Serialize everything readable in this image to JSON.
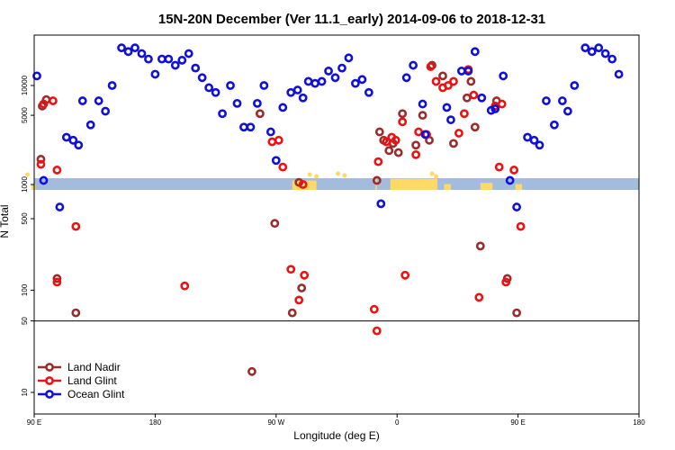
{
  "chart_data": {
    "type": "scatter",
    "title": "15N-20N December (Ver 11.1_early)   2014-09-06 to 2018-12-31",
    "xlabel": "Longitude (deg E)",
    "ylabel": "N Total",
    "x_ticks": [
      {
        "lon": 90,
        "label": "90 E"
      },
      {
        "lon": 180,
        "label": "180"
      },
      {
        "lon": 270,
        "label": "90 W"
      },
      {
        "lon": 360,
        "label": "0"
      },
      {
        "lon": 450,
        "label": "90 E"
      },
      {
        "lon": 540,
        "label": "180"
      }
    ],
    "xlim": [
      90,
      540
    ],
    "ylim": [
      6,
      30000
    ],
    "y_ticks": [
      {
        "value": 10,
        "label": "10"
      },
      {
        "value": 50,
        "label": "50"
      },
      {
        "value": 100,
        "label": "100"
      },
      {
        "value": 500,
        "label": "500"
      },
      {
        "value": 1000,
        "label": "1000"
      },
      {
        "value": 5000,
        "label": "5000"
      },
      {
        "value": 10000,
        "label": "10000"
      }
    ],
    "break_value": 1000,
    "separator_value": 50,
    "series": [
      {
        "name": "Land Nadir",
        "color": "#9b2c2c",
        "points": [
          [
            95,
            1800
          ],
          [
            96,
            6200
          ],
          [
            99,
            7200
          ],
          [
            107,
            130
          ],
          [
            121,
            60
          ],
          [
            252,
            16
          ],
          [
            258,
            5200
          ],
          [
            269,
            450
          ],
          [
            282,
            60
          ],
          [
            287,
            1050
          ],
          [
            289,
            105
          ],
          [
            345,
            1100
          ],
          [
            347,
            3400
          ],
          [
            350,
            2800
          ],
          [
            354,
            2200
          ],
          [
            357,
            2600
          ],
          [
            361,
            2100
          ],
          [
            364,
            5200
          ],
          [
            374,
            2500
          ],
          [
            379,
            5000
          ],
          [
            384,
            2800
          ],
          [
            386,
            16000
          ],
          [
            394,
            12500
          ],
          [
            402,
            2600
          ],
          [
            412,
            7500
          ],
          [
            415,
            11000
          ],
          [
            418,
            3800
          ],
          [
            422,
            270
          ],
          [
            434,
            7000
          ],
          [
            442,
            130
          ],
          [
            449,
            60
          ]
        ]
      },
      {
        "name": "Land Glint",
        "color": "#ee1111",
        "points": [
          [
            95,
            1600
          ],
          [
            97,
            6500
          ],
          [
            104,
            7000
          ],
          [
            107,
            1400
          ],
          [
            107,
            120
          ],
          [
            121,
            420
          ],
          [
            202,
            110
          ],
          [
            267,
            2700
          ],
          [
            272,
            2800
          ],
          [
            275,
            1500
          ],
          [
            281,
            160
          ],
          [
            287,
            80
          ],
          [
            290,
            1000
          ],
          [
            291,
            140
          ],
          [
            343,
            65
          ],
          [
            345,
            40
          ],
          [
            346,
            1700
          ],
          [
            352,
            2700
          ],
          [
            356,
            3000
          ],
          [
            359,
            2800
          ],
          [
            364,
            4300
          ],
          [
            366,
            140
          ],
          [
            374,
            2000
          ],
          [
            376,
            3400
          ],
          [
            382,
            3200
          ],
          [
            385,
            15500
          ],
          [
            389,
            11000
          ],
          [
            394,
            9500
          ],
          [
            398,
            10000
          ],
          [
            402,
            11000
          ],
          [
            406,
            3300
          ],
          [
            410,
            5200
          ],
          [
            413,
            14500
          ],
          [
            417,
            8000
          ],
          [
            421,
            85
          ],
          [
            433,
            6200
          ],
          [
            436,
            1500
          ],
          [
            438,
            6500
          ],
          [
            441,
            120
          ],
          [
            447,
            1400
          ],
          [
            452,
            420
          ]
        ]
      },
      {
        "name": "Ocean Glint",
        "color": "#1010dd",
        "points": [
          [
            92,
            12500
          ],
          [
            97,
            1100
          ],
          [
            109,
            650
          ],
          [
            114,
            3000
          ],
          [
            119,
            2800
          ],
          [
            123,
            2500
          ],
          [
            126,
            7000
          ],
          [
            132,
            4000
          ],
          [
            138,
            7000
          ],
          [
            143,
            5500
          ],
          [
            148,
            10000
          ],
          [
            155,
            24000
          ],
          [
            160,
            22000
          ],
          [
            165,
            24000
          ],
          [
            170,
            21000
          ],
          [
            175,
            18500
          ],
          [
            180,
            13000
          ],
          [
            185,
            18500
          ],
          [
            190,
            18500
          ],
          [
            195,
            16000
          ],
          [
            200,
            18000
          ],
          [
            205,
            21000
          ],
          [
            210,
            15000
          ],
          [
            215,
            12000
          ],
          [
            220,
            9500
          ],
          [
            225,
            8500
          ],
          [
            230,
            5200
          ],
          [
            236,
            10000
          ],
          [
            241,
            6600
          ],
          [
            246,
            3800
          ],
          [
            251,
            3800
          ],
          [
            256,
            6600
          ],
          [
            261,
            10000
          ],
          [
            266,
            3400
          ],
          [
            270,
            1750
          ],
          [
            275,
            6000
          ],
          [
            281,
            8500
          ],
          [
            286,
            9000
          ],
          [
            290,
            7500
          ],
          [
            294,
            11000
          ],
          [
            299,
            10500
          ],
          [
            304,
            11000
          ],
          [
            309,
            14000
          ],
          [
            314,
            12000
          ],
          [
            319,
            15000
          ],
          [
            324,
            19000
          ],
          [
            329,
            10500
          ],
          [
            334,
            11500
          ],
          [
            339,
            8500
          ],
          [
            348,
            700
          ],
          [
            367,
            12000
          ],
          [
            372,
            16000
          ],
          [
            379,
            6500
          ],
          [
            381,
            3200
          ],
          [
            397,
            6000
          ],
          [
            400,
            4500
          ],
          [
            408,
            14000
          ],
          [
            413,
            14000
          ],
          [
            418,
            22000
          ],
          [
            423,
            7500
          ],
          [
            430,
            5600
          ],
          [
            433,
            5800
          ],
          [
            439,
            12500
          ],
          [
            444,
            1100
          ],
          [
            449,
            650
          ],
          [
            457,
            3000
          ],
          [
            462,
            2800
          ],
          [
            466,
            2500
          ],
          [
            471,
            7000
          ],
          [
            477,
            4000
          ],
          [
            483,
            7000
          ],
          [
            487,
            5500
          ],
          [
            492,
            10000
          ],
          [
            500,
            24000
          ],
          [
            505,
            22000
          ],
          [
            510,
            24000
          ],
          [
            515,
            21000
          ],
          [
            520,
            18500
          ],
          [
            525,
            13000
          ]
        ]
      }
    ],
    "legend": {
      "position": "bottom-left",
      "entries": [
        "Land Nadir",
        "Land Glint",
        "Ocean Glint"
      ]
    },
    "land_color": "#ffd966",
    "ocean_color": "#a3bbdc"
  }
}
